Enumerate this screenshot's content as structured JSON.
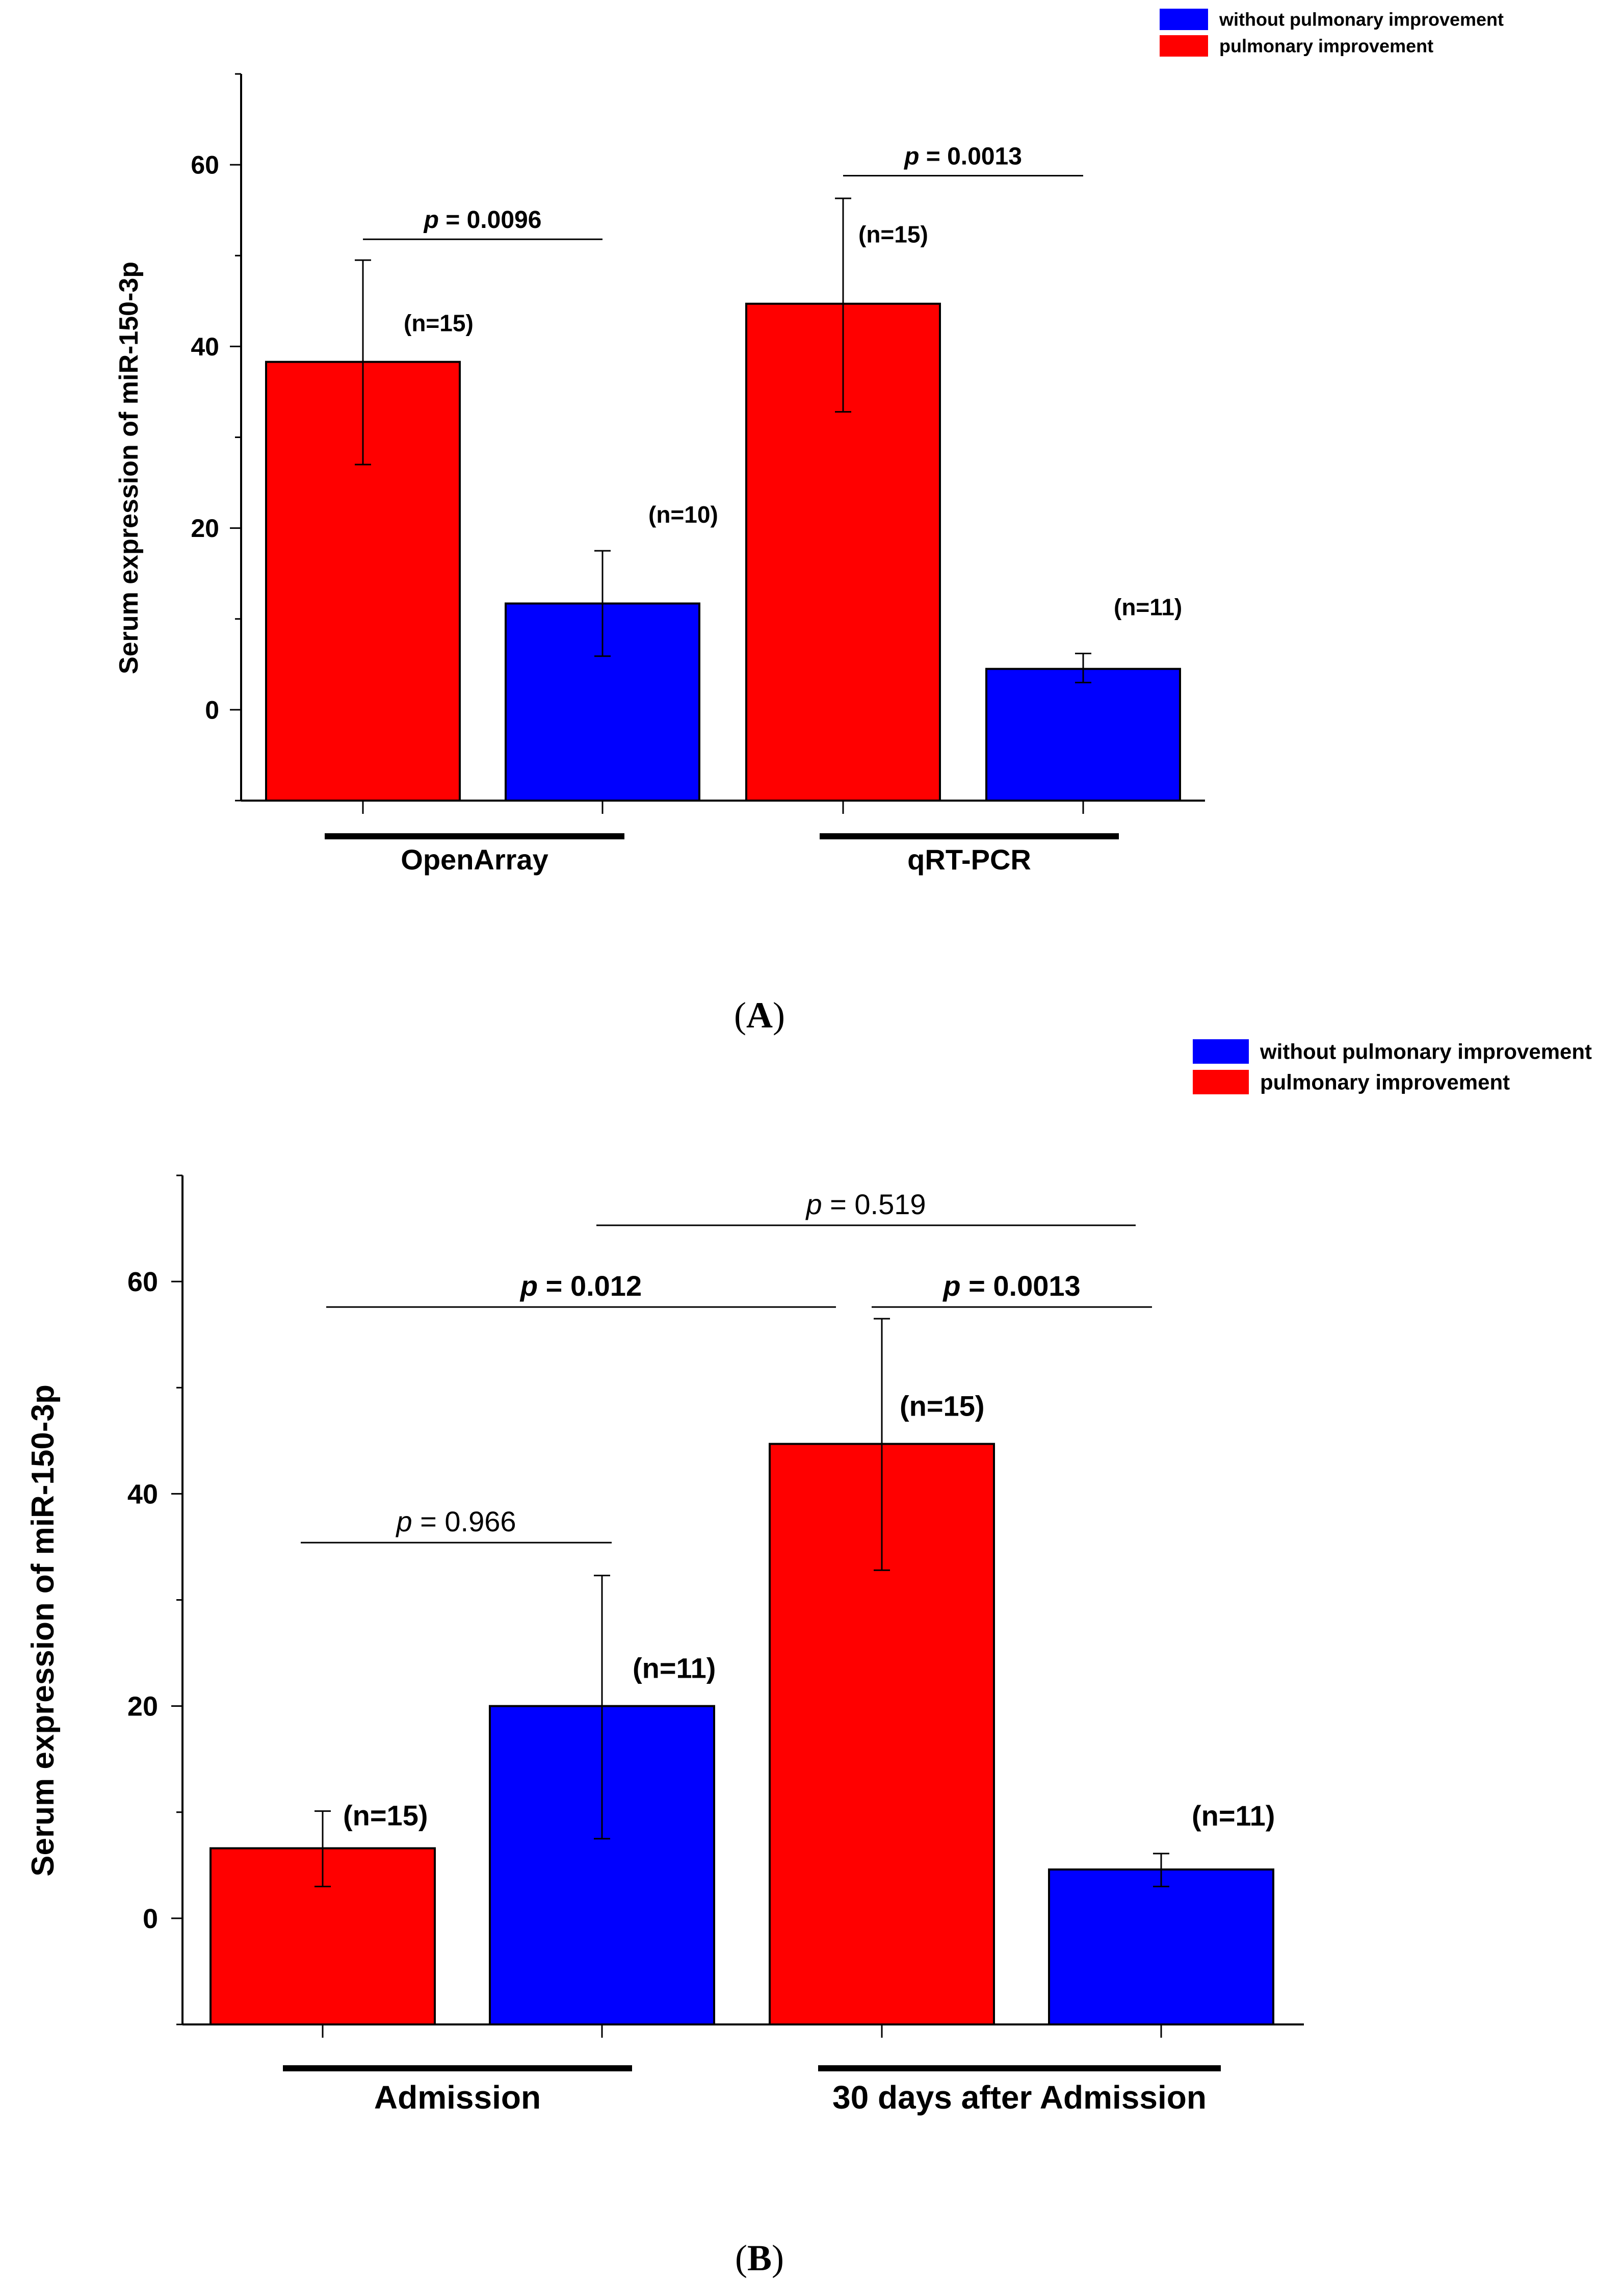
{
  "colors": {
    "red": "#ff0000",
    "blue": "#0000ff",
    "axis": "#000000"
  },
  "legend": {
    "blue_label": "without pulmonary  improvement",
    "red_label": "pulmonary  improvement"
  },
  "chart_data": [
    {
      "type": "bar",
      "panel_label": "A",
      "ylabel": "Serum expression of miR-150-3p",
      "xlabel": "",
      "ylim": [
        -10,
        70
      ],
      "yticks": [
        0,
        20,
        40,
        60
      ],
      "groups": [
        "OpenArray",
        "qRT-PCR"
      ],
      "bars": [
        {
          "group": "OpenArray",
          "series": "pulmonary  improvement",
          "color": "#ff0000",
          "value": 38.3,
          "err_low": 27.0,
          "err_high": 49.5,
          "n_label": "(n=15)"
        },
        {
          "group": "OpenArray",
          "series": "without pulmonary  improvement",
          "color": "#0000ff",
          "value": 11.7,
          "err_low": 5.9,
          "err_high": 17.5,
          "n_label": "(n=10)"
        },
        {
          "group": "qRT-PCR",
          "series": "pulmonary  improvement",
          "color": "#ff0000",
          "value": 44.7,
          "err_low": 32.8,
          "err_high": 56.3,
          "n_label": "(n=15)"
        },
        {
          "group": "qRT-PCR",
          "series": "without pulmonary  improvement",
          "color": "#0000ff",
          "value": 4.5,
          "err_low": 3.0,
          "err_high": 6.2,
          "n_label": "(n=11)"
        }
      ],
      "annotations": [
        {
          "italic_p": "p",
          "text": " = 0.0096",
          "bold": true,
          "from_bar": 0,
          "to_bar": 1,
          "y": 51.8
        },
        {
          "italic_p": "p",
          "text": " = 0.0013",
          "bold": true,
          "from_bar": 2,
          "to_bar": 3,
          "y": 58.8
        }
      ]
    },
    {
      "type": "bar",
      "panel_label": "B",
      "ylabel": "Serum expression of miR-150-3p",
      "xlabel": "",
      "ylim": [
        -10,
        70
      ],
      "yticks": [
        0,
        20,
        40,
        60
      ],
      "groups": [
        "Admission",
        "30 days  after Admission"
      ],
      "bars": [
        {
          "group": "Admission",
          "series": "pulmonary  improvement",
          "color": "#ff0000",
          "value": 6.6,
          "err_low": 3.0,
          "err_high": 10.1,
          "n_label": "(n=15)"
        },
        {
          "group": "Admission",
          "series": "without pulmonary  improvement",
          "color": "#0000ff",
          "value": 20.0,
          "err_low": 7.5,
          "err_high": 32.3,
          "n_label": "(n=11)"
        },
        {
          "group": "30 days  after Admission",
          "series": "pulmonary  improvement",
          "color": "#ff0000",
          "value": 44.7,
          "err_low": 32.8,
          "err_high": 56.5,
          "n_label": "(n=15)"
        },
        {
          "group": "30 days  after Admission",
          "series": "without pulmonary  improvement",
          "color": "#0000ff",
          "value": 4.6,
          "err_low": 3.0,
          "err_high": 6.1,
          "n_label": "(n=11)"
        }
      ],
      "annotations": [
        {
          "italic_p": "p",
          "text": " = 0.519",
          "bold": false,
          "from_bar": 1.0,
          "to_bar": 3.0,
          "y": 65.3
        },
        {
          "italic_p": "p",
          "text": " = 0.012",
          "bold": true,
          "from_bar": 0.0,
          "to_bar": 2.0,
          "y": 57.6
        },
        {
          "italic_p": "p",
          "text": " = 0.0013",
          "bold": true,
          "from_bar": 2.0,
          "to_bar": 3.0,
          "y": 57.6
        },
        {
          "italic_p": "p",
          "text": " = 0.966",
          "bold": false,
          "from_bar": 0.0,
          "to_bar": 1.0,
          "y": 35.4
        }
      ]
    }
  ]
}
